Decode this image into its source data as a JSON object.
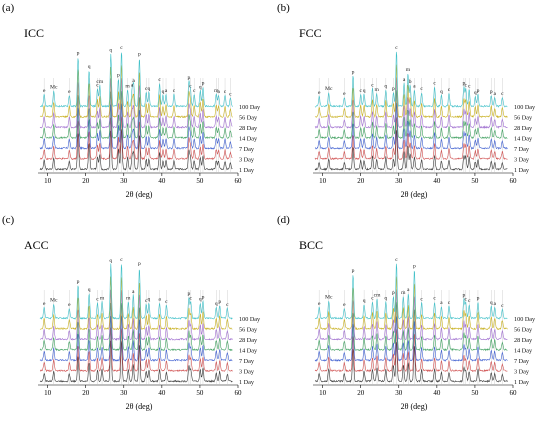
{
  "figure": {
    "panels": [
      {
        "label": "(a)",
        "title": "ICC"
      },
      {
        "label": "(b)",
        "title": "FCC"
      },
      {
        "label": "(c)",
        "title": "ACC"
      },
      {
        "label": "(d)",
        "title": "BCC"
      }
    ]
  },
  "chart_data": [
    {
      "type": "line",
      "title": "ICC",
      "xlabel": "2θ (deg)",
      "ylabel": "",
      "xlim": [
        8,
        60
      ],
      "xticks": [
        10,
        20,
        30,
        40,
        50,
        60
      ],
      "grid": false,
      "series": [
        {
          "name": "1 Day",
          "color": "#3a3a3a"
        },
        {
          "name": "3 Day",
          "color": "#d05050"
        },
        {
          "name": "7 Day",
          "color": "#4060d0"
        },
        {
          "name": "14 Day",
          "color": "#40a060"
        },
        {
          "name": "28 Day",
          "color": "#a070d0"
        },
        {
          "name": "56 Day",
          "color": "#c8b020"
        },
        {
          "name": "100 Day",
          "color": "#40c0c8"
        }
      ],
      "peaks": [
        {
          "x": 9.1,
          "h": 0.22,
          "tag": "e"
        },
        {
          "x": 11.6,
          "h": 0.28,
          "tag": "Mc"
        },
        {
          "x": 15.7,
          "h": 0.2,
          "tag": "e"
        },
        {
          "x": 18.0,
          "h": 0.9,
          "tag": "p"
        },
        {
          "x": 20.9,
          "h": 0.65,
          "tag": "q"
        },
        {
          "x": 23.1,
          "h": 0.32,
          "tag": "c"
        },
        {
          "x": 23.7,
          "h": 0.38,
          "tag": "cm"
        },
        {
          "x": 26.6,
          "h": 0.95,
          "tag": "q"
        },
        {
          "x": 28.6,
          "h": 0.5,
          "tag": "p"
        },
        {
          "x": 29.4,
          "h": 1.0,
          "tag": "c"
        },
        {
          "x": 31.0,
          "h": 0.3,
          "tag": "m"
        },
        {
          "x": 32.2,
          "h": 0.32,
          "tag": "a"
        },
        {
          "x": 32.6,
          "h": 0.4,
          "tag": "a"
        },
        {
          "x": 34.1,
          "h": 0.88,
          "tag": "p"
        },
        {
          "x": 35.9,
          "h": 0.25,
          "tag": "c"
        },
        {
          "x": 36.6,
          "h": 0.25,
          "tag": "q"
        },
        {
          "x": 39.4,
          "h": 0.42,
          "tag": "c"
        },
        {
          "x": 40.3,
          "h": 0.2,
          "tag": "q"
        },
        {
          "x": 41.1,
          "h": 0.22,
          "tag": "a"
        },
        {
          "x": 43.2,
          "h": 0.22,
          "tag": "c"
        },
        {
          "x": 47.1,
          "h": 0.45,
          "tag": "p"
        },
        {
          "x": 47.5,
          "h": 0.3,
          "tag": "c"
        },
        {
          "x": 48.5,
          "h": 0.22,
          "tag": "c"
        },
        {
          "x": 50.1,
          "h": 0.28,
          "tag": "q"
        },
        {
          "x": 50.8,
          "h": 0.35,
          "tag": "p"
        },
        {
          "x": 54.3,
          "h": 0.22,
          "tag": "m"
        },
        {
          "x": 54.9,
          "h": 0.2,
          "tag": "a"
        },
        {
          "x": 56.6,
          "h": 0.2,
          "tag": "c"
        },
        {
          "x": 58.0,
          "h": 0.15,
          "tag": "c"
        }
      ]
    },
    {
      "type": "line",
      "title": "FCC",
      "xlabel": "2θ (deg)",
      "ylabel": "",
      "xlim": [
        8,
        60
      ],
      "xticks": [
        10,
        20,
        30,
        40,
        50,
        60
      ],
      "grid": false,
      "series": [
        {
          "name": "1 Day",
          "color": "#3a3a3a"
        },
        {
          "name": "3 Day",
          "color": "#d05050"
        },
        {
          "name": "7 Day",
          "color": "#4060d0"
        },
        {
          "name": "14 Day",
          "color": "#40a060"
        },
        {
          "name": "28 Day",
          "color": "#a070d0"
        },
        {
          "name": "56 Day",
          "color": "#c8b020"
        },
        {
          "name": "100 Day",
          "color": "#40c0c8"
        }
      ],
      "peaks": [
        {
          "x": 9.1,
          "h": 0.18,
          "tag": "e"
        },
        {
          "x": 11.6,
          "h": 0.25,
          "tag": "Mc"
        },
        {
          "x": 15.7,
          "h": 0.16,
          "tag": "e"
        },
        {
          "x": 18.0,
          "h": 0.55,
          "tag": "p"
        },
        {
          "x": 20.0,
          "h": 0.22,
          "tag": "c"
        },
        {
          "x": 20.9,
          "h": 0.22,
          "tag": "q"
        },
        {
          "x": 23.1,
          "h": 0.32,
          "tag": "c"
        },
        {
          "x": 24.2,
          "h": 0.24,
          "tag": "m"
        },
        {
          "x": 26.6,
          "h": 0.3,
          "tag": "q"
        },
        {
          "x": 28.6,
          "h": 0.25,
          "tag": "p"
        },
        {
          "x": 29.4,
          "h": 1.0,
          "tag": "c"
        },
        {
          "x": 31.4,
          "h": 0.42,
          "tag": "a"
        },
        {
          "x": 32.4,
          "h": 0.6,
          "tag": "m"
        },
        {
          "x": 33.0,
          "h": 0.38,
          "tag": "b"
        },
        {
          "x": 34.1,
          "h": 0.3,
          "tag": "a"
        },
        {
          "x": 36.0,
          "h": 0.25,
          "tag": "c"
        },
        {
          "x": 39.4,
          "h": 0.35,
          "tag": "c"
        },
        {
          "x": 41.2,
          "h": 0.2,
          "tag": "q"
        },
        {
          "x": 43.2,
          "h": 0.24,
          "tag": "c"
        },
        {
          "x": 47.1,
          "h": 0.35,
          "tag": "p"
        },
        {
          "x": 47.6,
          "h": 0.32,
          "tag": "c"
        },
        {
          "x": 48.5,
          "h": 0.3,
          "tag": "c"
        },
        {
          "x": 50.1,
          "h": 0.18,
          "tag": "q"
        },
        {
          "x": 50.8,
          "h": 0.22,
          "tag": "p"
        },
        {
          "x": 54.3,
          "h": 0.2,
          "tag": "p"
        },
        {
          "x": 55.2,
          "h": 0.16,
          "tag": "a"
        },
        {
          "x": 57.2,
          "h": 0.16,
          "tag": "c"
        }
      ]
    },
    {
      "type": "line",
      "title": "ACC",
      "xlabel": "2θ (deg)",
      "ylabel": "",
      "xlim": [
        8,
        60
      ],
      "xticks": [
        10,
        20,
        30,
        40,
        50,
        60
      ],
      "grid": false,
      "series": [
        {
          "name": "1 Day",
          "color": "#3a3a3a"
        },
        {
          "name": "3 Day",
          "color": "#d05050"
        },
        {
          "name": "7 Day",
          "color": "#4060d0"
        },
        {
          "name": "14 Day",
          "color": "#40a060"
        },
        {
          "name": "28 Day",
          "color": "#a070d0"
        },
        {
          "name": "56 Day",
          "color": "#c8b020"
        },
        {
          "name": "100 Day",
          "color": "#40c0c8"
        }
      ],
      "peaks": [
        {
          "x": 9.1,
          "h": 0.2,
          "tag": "e"
        },
        {
          "x": 11.6,
          "h": 0.26,
          "tag": "Mc"
        },
        {
          "x": 15.7,
          "h": 0.18,
          "tag": "e"
        },
        {
          "x": 18.0,
          "h": 0.6,
          "tag": "p"
        },
        {
          "x": 20.9,
          "h": 0.45,
          "tag": "q"
        },
        {
          "x": 23.1,
          "h": 0.28,
          "tag": "c"
        },
        {
          "x": 24.3,
          "h": 0.3,
          "tag": "m"
        },
        {
          "x": 26.6,
          "h": 0.98,
          "tag": "q"
        },
        {
          "x": 29.4,
          "h": 1.0,
          "tag": "c"
        },
        {
          "x": 31.2,
          "h": 0.3,
          "tag": "m"
        },
        {
          "x": 32.5,
          "h": 0.42,
          "tag": "a"
        },
        {
          "x": 34.1,
          "h": 0.92,
          "tag": "p"
        },
        {
          "x": 35.9,
          "h": 0.25,
          "tag": "c"
        },
        {
          "x": 36.6,
          "h": 0.28,
          "tag": "q"
        },
        {
          "x": 39.4,
          "h": 0.28,
          "tag": "a"
        },
        {
          "x": 41.2,
          "h": 0.24,
          "tag": "c"
        },
        {
          "x": 47.1,
          "h": 0.38,
          "tag": "p"
        },
        {
          "x": 47.6,
          "h": 0.3,
          "tag": "c"
        },
        {
          "x": 50.1,
          "h": 0.28,
          "tag": "q"
        },
        {
          "x": 50.8,
          "h": 0.32,
          "tag": "p"
        },
        {
          "x": 54.3,
          "h": 0.2,
          "tag": "q"
        },
        {
          "x": 55.2,
          "h": 0.24,
          "tag": "p"
        },
        {
          "x": 57.2,
          "h": 0.18,
          "tag": "c"
        }
      ]
    },
    {
      "type": "line",
      "title": "BCC",
      "xlabel": "2θ (deg)",
      "ylabel": "",
      "xlim": [
        8,
        60
      ],
      "xticks": [
        10,
        20,
        30,
        40,
        50,
        60
      ],
      "grid": false,
      "series": [
        {
          "name": "1 Day",
          "color": "#3a3a3a"
        },
        {
          "name": "3 Day",
          "color": "#d05050"
        },
        {
          "name": "7 Day",
          "color": "#4060d0"
        },
        {
          "name": "14 Day",
          "color": "#40a060"
        },
        {
          "name": "28 Day",
          "color": "#a070d0"
        },
        {
          "name": "56 Day",
          "color": "#c8b020"
        },
        {
          "name": "100 Day",
          "color": "#40c0c8"
        }
      ],
      "peaks": [
        {
          "x": 9.1,
          "h": 0.2,
          "tag": "e"
        },
        {
          "x": 11.6,
          "h": 0.32,
          "tag": "Mc"
        },
        {
          "x": 15.7,
          "h": 0.18,
          "tag": "e"
        },
        {
          "x": 18.0,
          "h": 0.8,
          "tag": "p"
        },
        {
          "x": 20.9,
          "h": 0.25,
          "tag": "q"
        },
        {
          "x": 23.1,
          "h": 0.3,
          "tag": "c"
        },
        {
          "x": 24.3,
          "h": 0.35,
          "tag": "cm"
        },
        {
          "x": 26.6,
          "h": 0.3,
          "tag": "q"
        },
        {
          "x": 28.6,
          "h": 0.4,
          "tag": "p"
        },
        {
          "x": 29.4,
          "h": 1.0,
          "tag": "c"
        },
        {
          "x": 31.2,
          "h": 0.4,
          "tag": "m"
        },
        {
          "x": 32.5,
          "h": 0.45,
          "tag": "a"
        },
        {
          "x": 34.1,
          "h": 0.88,
          "tag": "p"
        },
        {
          "x": 36.0,
          "h": 0.28,
          "tag": "c"
        },
        {
          "x": 39.4,
          "h": 0.3,
          "tag": "c"
        },
        {
          "x": 41.2,
          "h": 0.22,
          "tag": "a"
        },
        {
          "x": 43.2,
          "h": 0.22,
          "tag": "c"
        },
        {
          "x": 47.1,
          "h": 0.35,
          "tag": "p"
        },
        {
          "x": 47.6,
          "h": 0.28,
          "tag": "c"
        },
        {
          "x": 48.5,
          "h": 0.25,
          "tag": "c"
        },
        {
          "x": 50.8,
          "h": 0.3,
          "tag": "p"
        },
        {
          "x": 54.3,
          "h": 0.22,
          "tag": "q"
        },
        {
          "x": 55.2,
          "h": 0.2,
          "tag": "a"
        },
        {
          "x": 57.2,
          "h": 0.16,
          "tag": "c"
        }
      ]
    }
  ]
}
